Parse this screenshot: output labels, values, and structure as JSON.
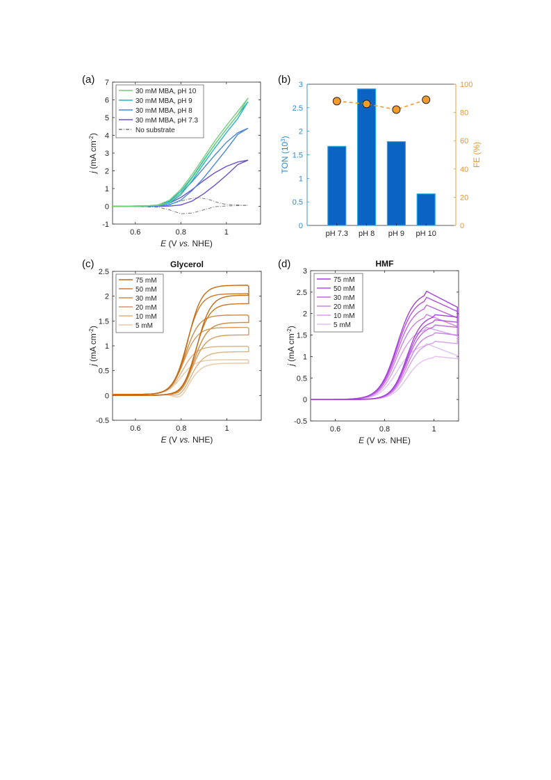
{
  "panels": [
    {
      "label": "(a)",
      "chart_data": {
        "type": "line",
        "title": "",
        "xlabel": "E (V vs. NHE)",
        "ylabel": "j (mA cm-2)",
        "xlim": [
          0.5,
          1.15
        ],
        "ylim": [
          -1,
          7
        ],
        "xticks": [
          0.6,
          0.8,
          1
        ],
        "yticks": [
          -1,
          0,
          1,
          2,
          3,
          4,
          5,
          6,
          7
        ],
        "legend": "top-left",
        "series": [
          {
            "name": "30 mM MBA, pH 10",
            "color": "#74cc7a",
            "style": "solid",
            "forward": [
              [
                0.5,
                0
              ],
              [
                0.65,
                0.02
              ],
              [
                0.7,
                0.08
              ],
              [
                0.75,
                0.35
              ],
              [
                0.8,
                0.95
              ],
              [
                0.85,
                1.8
              ],
              [
                0.9,
                2.75
              ],
              [
                0.95,
                3.7
              ],
              [
                1.0,
                4.55
              ],
              [
                1.05,
                5.35
              ],
              [
                1.095,
                6.1
              ]
            ],
            "reverse": [
              [
                1.095,
                6.1
              ],
              [
                1.05,
                5.15
              ],
              [
                1.0,
                4.35
              ],
              [
                0.95,
                3.5
              ],
              [
                0.9,
                2.55
              ],
              [
                0.85,
                1.6
              ],
              [
                0.8,
                0.75
              ],
              [
                0.75,
                0.22
              ],
              [
                0.7,
                0.05
              ],
              [
                0.6,
                0.01
              ],
              [
                0.5,
                0
              ]
            ]
          },
          {
            "name": "30 mM MBA, pH 9",
            "color": "#25b3c9",
            "style": "solid",
            "forward": [
              [
                0.5,
                0
              ],
              [
                0.65,
                0.02
              ],
              [
                0.7,
                0.07
              ],
              [
                0.75,
                0.3
              ],
              [
                0.8,
                0.85
              ],
              [
                0.85,
                1.65
              ],
              [
                0.9,
                2.6
              ],
              [
                0.95,
                3.5
              ],
              [
                1.0,
                4.35
              ],
              [
                1.05,
                5.15
              ],
              [
                1.095,
                5.9
              ]
            ],
            "reverse": [
              [
                1.095,
                5.9
              ],
              [
                1.05,
                4.95
              ],
              [
                1.0,
                4.15
              ],
              [
                0.95,
                3.3
              ],
              [
                0.9,
                2.4
              ],
              [
                0.85,
                1.45
              ],
              [
                0.8,
                0.65
              ],
              [
                0.75,
                0.18
              ],
              [
                0.7,
                0.04
              ],
              [
                0.6,
                0.01
              ],
              [
                0.5,
                0
              ]
            ]
          },
          {
            "name": "30 mM MBA, pH 8",
            "color": "#4a86d6",
            "style": "solid",
            "forward": [
              [
                0.5,
                0
              ],
              [
                0.65,
                0.02
              ],
              [
                0.7,
                0.06
              ],
              [
                0.75,
                0.25
              ],
              [
                0.8,
                0.75
              ],
              [
                0.85,
                1.4
              ],
              [
                0.9,
                2.15
              ],
              [
                0.95,
                2.9
              ],
              [
                1.0,
                3.6
              ],
              [
                1.05,
                4.15
              ],
              [
                1.095,
                4.4
              ]
            ],
            "reverse": [
              [
                1.095,
                4.4
              ],
              [
                1.05,
                4.05
              ],
              [
                1.0,
                3.2
              ],
              [
                0.95,
                2.4
              ],
              [
                0.9,
                1.6
              ],
              [
                0.85,
                0.9
              ],
              [
                0.8,
                0.35
              ],
              [
                0.75,
                0.08
              ],
              [
                0.7,
                0.02
              ],
              [
                0.6,
                0.01
              ],
              [
                0.5,
                0
              ]
            ]
          },
          {
            "name": "30 mM MBA, pH 7.3",
            "color": "#6b4fd0",
            "style": "solid",
            "forward": [
              [
                0.5,
                0
              ],
              [
                0.65,
                0.02
              ],
              [
                0.7,
                0.05
              ],
              [
                0.75,
                0.18
              ],
              [
                0.8,
                0.5
              ],
              [
                0.85,
                0.95
              ],
              [
                0.9,
                1.45
              ],
              [
                0.95,
                1.9
              ],
              [
                1.0,
                2.25
              ],
              [
                1.05,
                2.5
              ],
              [
                1.095,
                2.6
              ]
            ],
            "reverse": [
              [
                1.095,
                2.6
              ],
              [
                1.05,
                2.35
              ],
              [
                1.0,
                1.75
              ],
              [
                0.95,
                1.2
              ],
              [
                0.9,
                0.7
              ],
              [
                0.85,
                0.3
              ],
              [
                0.8,
                0.08
              ],
              [
                0.75,
                0.01
              ],
              [
                0.7,
                0.0
              ],
              [
                0.6,
                0.0
              ],
              [
                0.5,
                0
              ]
            ]
          },
          {
            "name": "No substrate",
            "color": "#777777",
            "style": "dashdot",
            "forward": [
              [
                0.5,
                0
              ],
              [
                0.65,
                0.02
              ],
              [
                0.75,
                0.1
              ],
              [
                0.8,
                0.3
              ],
              [
                0.85,
                0.45
              ],
              [
                0.88,
                0.48
              ],
              [
                0.92,
                0.4
              ],
              [
                0.96,
                0.22
              ],
              [
                1.0,
                0.1
              ],
              [
                1.095,
                0.05
              ]
            ],
            "reverse": [
              [
                1.095,
                0.05
              ],
              [
                1.0,
                0.02
              ],
              [
                0.95,
                -0.02
              ],
              [
                0.9,
                -0.2
              ],
              [
                0.85,
                -0.38
              ],
              [
                0.8,
                -0.42
              ],
              [
                0.75,
                -0.2
              ],
              [
                0.7,
                -0.05
              ],
              [
                0.6,
                -0.01
              ],
              [
                0.5,
                0
              ]
            ]
          }
        ]
      }
    },
    {
      "label": "(b)",
      "chart_data": {
        "type": "bar",
        "title": "",
        "categories": [
          "pH 7.3",
          "pH 8",
          "pH 9",
          "pH 10"
        ],
        "ylabel": "TON (10^3)",
        "ylabel_parts": {
          "main": "TON (10",
          "sup": "3",
          "end": ")"
        },
        "y2label": "FE (%)",
        "ylim": [
          0,
          3
        ],
        "yticks": [
          0,
          0.5,
          1,
          1.5,
          2,
          2.5,
          3
        ],
        "y2lim": [
          0,
          100
        ],
        "y2ticks": [
          0,
          20,
          40,
          60,
          80,
          100
        ],
        "series": [
          {
            "name": "TON",
            "axis": "left",
            "color": "#0b63c4",
            "edge": "#29a9e1",
            "values": [
              1.68,
              2.9,
              1.78,
              0.67
            ]
          },
          {
            "name": "FE",
            "axis": "right",
            "color": "#f39a2d",
            "style": "dashed-marker",
            "values": [
              88,
              86,
              82,
              89
            ]
          }
        ],
        "left_axis_color": "#2a8ad1",
        "right_axis_color": "#e8952a"
      }
    },
    {
      "label": "(c)",
      "chart_data": {
        "type": "line",
        "title": "Glycerol",
        "xlabel": "E (V vs. NHE)",
        "ylabel": "j (mA cm-2)",
        "xlim": [
          0.5,
          1.15
        ],
        "ylim": [
          -0.5,
          2.5
        ],
        "xticks": [
          0.6,
          0.8,
          1
        ],
        "yticks": [
          -0.5,
          0,
          0.5,
          1,
          1.5,
          2,
          2.5
        ],
        "legend": "top-left",
        "series": [
          {
            "name": "75 mM",
            "color": "#c06a14",
            "plateau_fwd": 2.2,
            "plateau_rev": 2.02,
            "dip": -0.02
          },
          {
            "name": "50 mM",
            "color": "#c77a2a",
            "plateau_fwd": 2.03,
            "plateau_rev": 1.85,
            "dip": -0.03
          },
          {
            "name": "30 mM",
            "color": "#cf8a42",
            "plateau_fwd": 1.6,
            "plateau_rev": 1.47,
            "dip": -0.05
          },
          {
            "name": "20 mM",
            "color": "#d79a5c",
            "plateau_fwd": 1.35,
            "plateau_rev": 1.22,
            "dip": -0.07
          },
          {
            "name": "10 mM",
            "color": "#e0b07e",
            "plateau_fwd": 0.97,
            "plateau_rev": 0.88,
            "dip": -0.1
          },
          {
            "name": "5 mM",
            "color": "#e9c8a2",
            "plateau_fwd": 0.7,
            "plateau_rev": 0.65,
            "dip": -0.14
          }
        ]
      }
    },
    {
      "label": "(d)",
      "chart_data": {
        "type": "line",
        "title": "HMF",
        "xlabel": "E (V vs. NHE)",
        "ylabel": "j (mA cm-2)",
        "xlim": [
          0.5,
          1.1
        ],
        "ylim": [
          -0.5,
          3
        ],
        "xticks": [
          0.6,
          0.8,
          1
        ],
        "yticks": [
          -0.5,
          0,
          0.5,
          1,
          1.5,
          2,
          2.5,
          3
        ],
        "legend": "top-left",
        "series": [
          {
            "name": "75 mM",
            "color": "#a43fd6",
            "peak": 2.52,
            "end_fwd": 2.15,
            "end_rev": 1.92
          },
          {
            "name": "50 mM",
            "color": "#b252dc",
            "peak": 2.38,
            "end_fwd": 2.05,
            "end_rev": 1.8
          },
          {
            "name": "30 mM",
            "color": "#c066e1",
            "peak": 2.2,
            "end_fwd": 1.9,
            "end_rev": 1.68
          },
          {
            "name": "20 mM",
            "color": "#cc80e6",
            "peak": 1.98,
            "end_fwd": 1.7,
            "end_rev": 1.5
          },
          {
            "name": "10 mM",
            "color": "#d79eeb",
            "peak": 1.68,
            "end_fwd": 1.48,
            "end_rev": 1.3
          },
          {
            "name": "5 mM",
            "color": "#e3bff1",
            "peak": 1.3,
            "end_fwd": 1.02,
            "end_rev": 0.95
          }
        ]
      }
    }
  ]
}
